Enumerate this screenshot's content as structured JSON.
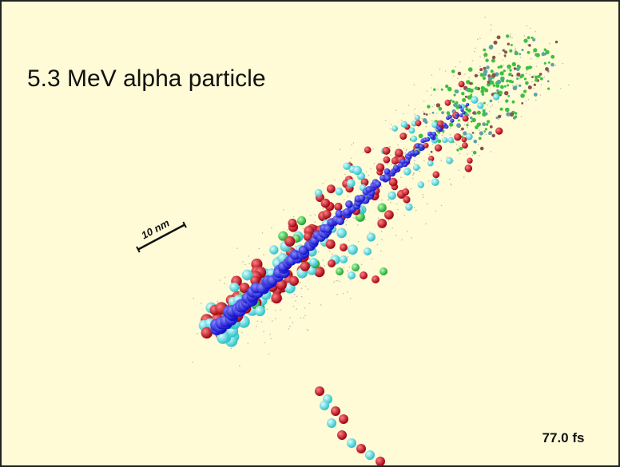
{
  "title": "5.3 MeV alpha particle",
  "scale_label": "10 nm",
  "time_label": "77.0 fs"
}
